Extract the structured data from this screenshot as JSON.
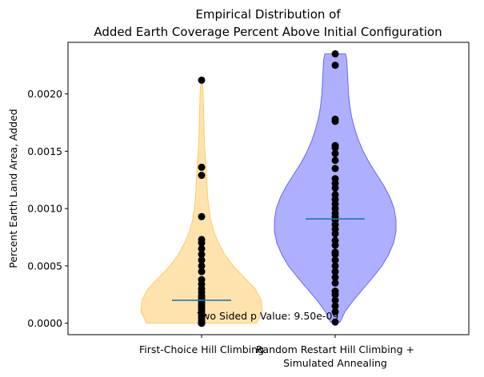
{
  "chart_data": {
    "type": "violin",
    "title_lines": [
      "Empirical Distribution of",
      "Added Earth Coverage Percent Above Initial Configuration"
    ],
    "xlabel": "",
    "ylabel": "Percent Earth Land Area, Added",
    "ylim": [
      -0.0001,
      0.00245
    ],
    "y_ticks": [
      0.0,
      0.0005,
      0.001,
      0.0015,
      0.002
    ],
    "y_tick_labels": [
      "0.0000",
      "0.0005",
      "0.0010",
      "0.0015",
      "0.0020"
    ],
    "categories": [
      {
        "line1": "First-Choice Hill Climbing",
        "line2": ""
      },
      {
        "line1": "Random Restart Hill Climbing +",
        "line2": "Simulated Annealing"
      }
    ],
    "annotation": "Two Sided p Value: 9.50e-09",
    "colors": {
      "violin_1": "#ffc04d",
      "violin_2": "#4d4dff",
      "median_line": "#1f77b4",
      "points": "#000000",
      "iqr_bar": "#0000ff"
    },
    "series": [
      {
        "median": 0.0002,
        "points": [
          0.0,
          0.0,
          0.0,
          0.0,
          0.0,
          0.0,
          2e-05,
          4e-05,
          6e-05,
          8e-05,
          0.0001,
          0.00012,
          0.00014,
          0.00016,
          0.00018,
          0.0002,
          0.00022,
          0.00024,
          0.00027,
          0.0003,
          0.00034,
          0.00038,
          0.00045,
          0.0005,
          0.00055,
          0.0006,
          0.00065,
          0.0007,
          0.00073,
          0.00093,
          0.00129,
          0.00136,
          0.00212
        ],
        "density": [
          [
            0.0,
            0.9
          ],
          [
            0.0001,
            1.0
          ],
          [
            0.0002,
            0.98
          ],
          [
            0.0003,
            0.88
          ],
          [
            0.0004,
            0.7
          ],
          [
            0.0005,
            0.52
          ],
          [
            0.0006,
            0.38
          ],
          [
            0.0007,
            0.28
          ],
          [
            0.0008,
            0.2
          ],
          [
            0.0009,
            0.15
          ],
          [
            0.001,
            0.12
          ],
          [
            0.0011,
            0.1
          ],
          [
            0.0012,
            0.09
          ],
          [
            0.0013,
            0.08
          ],
          [
            0.0014,
            0.07
          ],
          [
            0.0015,
            0.055
          ],
          [
            0.0016,
            0.045
          ],
          [
            0.0017,
            0.04
          ],
          [
            0.0018,
            0.035
          ],
          [
            0.0019,
            0.03
          ],
          [
            0.002,
            0.025
          ],
          [
            0.00212,
            0.01
          ]
        ]
      },
      {
        "median": 0.00091,
        "iqr": [
          0.00068,
          0.00126
        ],
        "points": [
          1e-05,
          0.0001,
          0.00015,
          0.0002,
          0.00025,
          0.00028,
          0.00035,
          0.0004,
          0.00045,
          0.0005,
          0.00055,
          0.0006,
          0.00062,
          0.00068,
          0.00072,
          0.00078,
          0.00082,
          0.00086,
          0.0009,
          0.00093,
          0.00096,
          0.001,
          0.00104,
          0.00108,
          0.00112,
          0.00118,
          0.00122,
          0.00126,
          0.00135,
          0.00142,
          0.00148,
          0.00153,
          0.00155,
          0.00176,
          0.00178,
          0.00225,
          0.00235
        ],
        "density": [
          [
            1e-05,
            0.08
          ],
          [
            0.0001,
            0.16
          ],
          [
            0.0002,
            0.3
          ],
          [
            0.0003,
            0.46
          ],
          [
            0.0004,
            0.62
          ],
          [
            0.0005,
            0.77
          ],
          [
            0.0006,
            0.88
          ],
          [
            0.0007,
            0.96
          ],
          [
            0.0008,
            1.0
          ],
          [
            0.0009,
            1.0
          ],
          [
            0.001,
            0.97
          ],
          [
            0.0011,
            0.9
          ],
          [
            0.0012,
            0.8
          ],
          [
            0.0013,
            0.68
          ],
          [
            0.0014,
            0.56
          ],
          [
            0.0015,
            0.46
          ],
          [
            0.0016,
            0.38
          ],
          [
            0.0017,
            0.32
          ],
          [
            0.0018,
            0.27
          ],
          [
            0.0019,
            0.24
          ],
          [
            0.002,
            0.22
          ],
          [
            0.0021,
            0.21
          ],
          [
            0.0022,
            0.2
          ],
          [
            0.0023,
            0.19
          ],
          [
            0.00235,
            0.17
          ]
        ]
      }
    ]
  }
}
